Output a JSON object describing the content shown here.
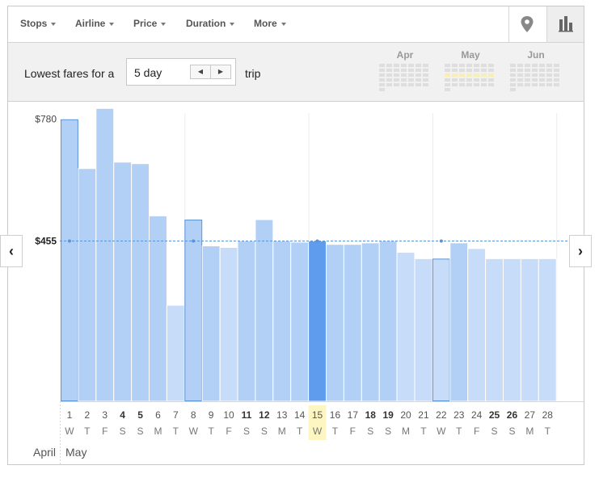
{
  "toolbar": {
    "filters": [
      {
        "label": "Stops",
        "name": "stops"
      },
      {
        "label": "Airline",
        "name": "airline"
      },
      {
        "label": "Price",
        "name": "price"
      },
      {
        "label": "Duration",
        "name": "duration"
      },
      {
        "label": "More",
        "name": "more"
      }
    ],
    "views": {
      "map_icon": "map-pin-icon",
      "chart_icon": "bar-chart-icon"
    }
  },
  "fares": {
    "label": "Lowest fares for a",
    "duration_value": "5 day",
    "decrement_symbol": "◀",
    "increment_symbol": "▶",
    "suffix": "trip",
    "months": [
      "Apr",
      "May",
      "Jun"
    ]
  },
  "chart_data": {
    "type": "bar",
    "y_tick_labels": [
      "$780",
      "$455"
    ],
    "y_ticks": [
      780,
      455
    ],
    "highlight_price": 455,
    "categories": [
      "1",
      "2",
      "3",
      "4",
      "5",
      "6",
      "7",
      "8",
      "9",
      "10",
      "11",
      "12",
      "13",
      "14",
      "15",
      "16",
      "17",
      "18",
      "19",
      "20",
      "21",
      "22",
      "23",
      "24",
      "25",
      "26",
      "27",
      "28"
    ],
    "weekdays": [
      "W",
      "T",
      "F",
      "S",
      "S",
      "M",
      "T",
      "W",
      "T",
      "F",
      "S",
      "S",
      "M",
      "T",
      "W",
      "T",
      "F",
      "S",
      "S",
      "M",
      "T",
      "W",
      "T",
      "F",
      "S",
      "S",
      "M",
      "T"
    ],
    "bold_days": [
      4,
      5,
      11,
      12,
      18,
      19,
      25,
      26
    ],
    "values": [
      779,
      648,
      808,
      665,
      661,
      522,
      284,
      512,
      442,
      438,
      455,
      512,
      455,
      452,
      455,
      446,
      446,
      450,
      455,
      425,
      408,
      408,
      450,
      435,
      408,
      408,
      408,
      408
    ],
    "selected_day": 15,
    "outlined_days": [
      1,
      8,
      22
    ],
    "month_labels": [
      "April",
      "May"
    ],
    "colors": {
      "bar_light": "#c6dcf9",
      "bar_mid": "#b2cff6",
      "bar_selected": "#5f9cee",
      "today": "#fdf6c3",
      "reference_line": "#5a93d6"
    }
  },
  "nav": {
    "prev_symbol": "‹",
    "next_symbol": "›"
  }
}
